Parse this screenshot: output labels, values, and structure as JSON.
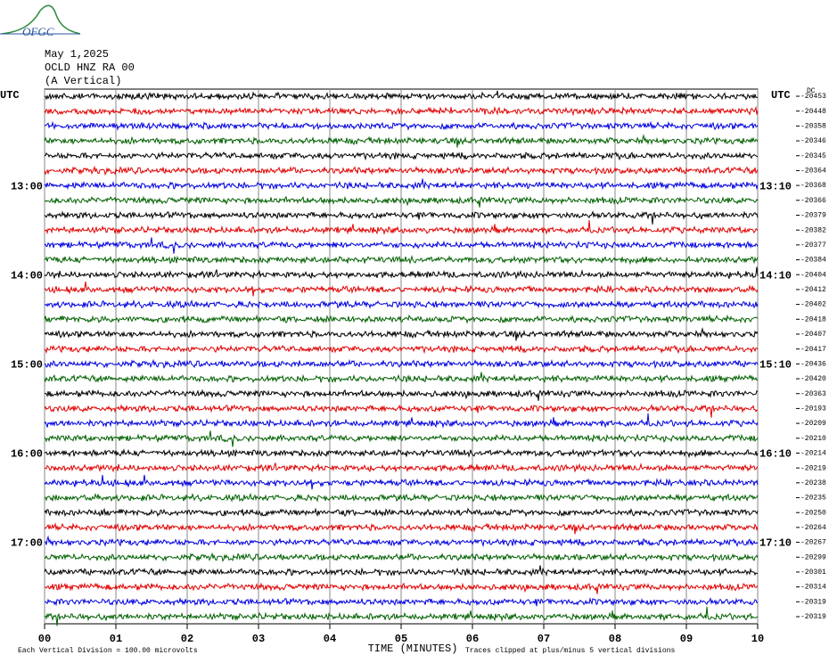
{
  "header": {
    "logo": "OFGC",
    "date": "May 1,2025",
    "station": "OCLD HNZ RA 00",
    "component": "(A Vertical)"
  },
  "left_labels": [
    "UTC",
    "13:00",
    "14:00",
    "15:00",
    "16:00",
    "17:00"
  ],
  "right_labels": [
    "UTC",
    "13:10",
    "14:10",
    "15:10",
    "16:10",
    "17:10"
  ],
  "dc_label": "DC",
  "offsets": [
    "-20453",
    "-20448",
    "-20358",
    "-20346",
    "-20345",
    "-20364",
    "-20368",
    "-20366",
    "-20379",
    "-20382",
    "-20377",
    "-20384",
    "-20404",
    "-20412",
    "-20402",
    "-20418",
    "-20407",
    "-20417",
    "-20436",
    "-20420",
    "-20363",
    "-20193",
    "-20209",
    "-20210",
    "-20214",
    "-20219",
    "-20238",
    "-20235",
    "-20250",
    "-20264",
    "-20267",
    "-20299",
    "-20301",
    "-20314",
    "-20319",
    "-20319"
  ],
  "x_ticks": [
    "00",
    "01",
    "02",
    "03",
    "04",
    "05",
    "06",
    "07",
    "08",
    "09",
    "10"
  ],
  "footer": {
    "scale_note": "Each Vertical Division =  100.00 microvolts",
    "x_label": "TIME (MINUTES)",
    "clip_note": "Traces clipped at plus/minus 5 vertical divisions"
  }
}
